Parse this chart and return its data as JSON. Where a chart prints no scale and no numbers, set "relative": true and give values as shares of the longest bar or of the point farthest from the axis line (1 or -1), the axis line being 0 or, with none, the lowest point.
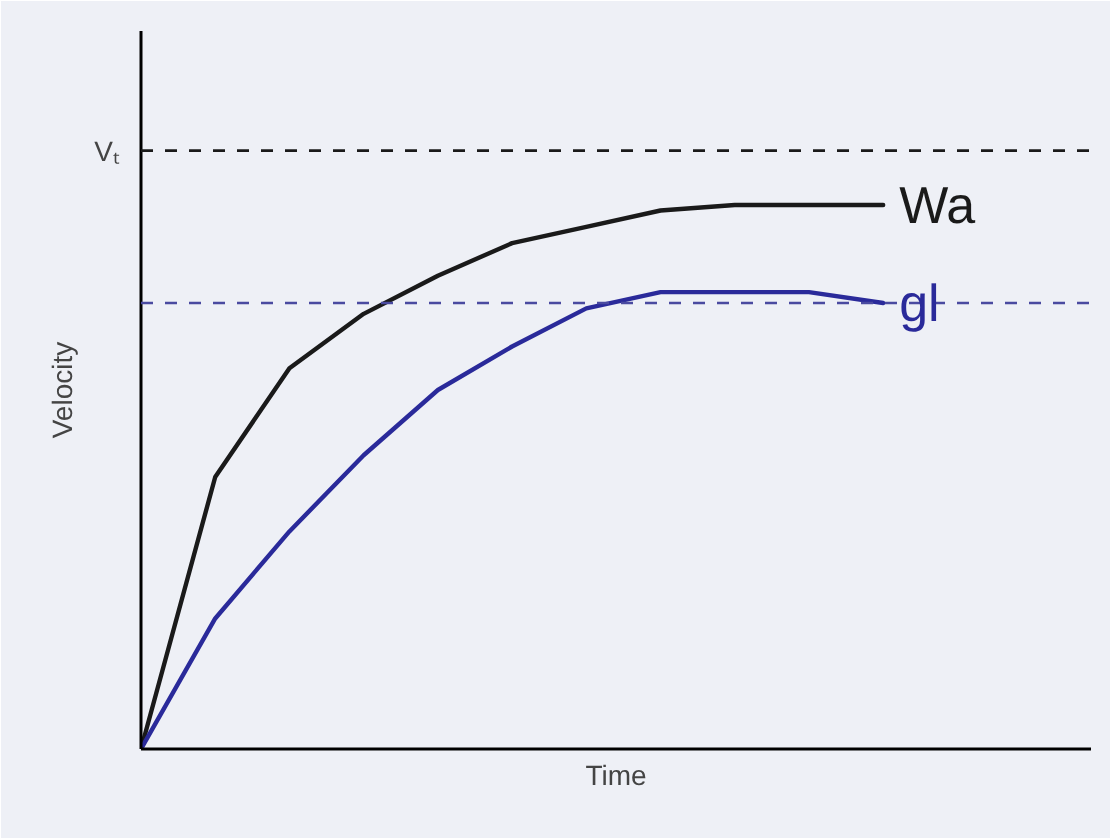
{
  "chart_data": {
    "type": "line",
    "relative": true,
    "xlabel": "Time",
    "ylabel": "Velocity",
    "categories": [
      null,
      null,
      null,
      null,
      null,
      null,
      null,
      null,
      null,
      null,
      null
    ],
    "series": [
      {
        "name": "Wa",
        "color": "#1a1a1a",
        "values": [
          0,
          0.5,
          0.7,
          0.8,
          0.87,
          0.93,
          0.96,
          0.99,
          1.0,
          1.0,
          1.0
        ]
      },
      {
        "name": "gl",
        "color": "#2a2a9a",
        "values": [
          0,
          0.24,
          0.4,
          0.54,
          0.66,
          0.74,
          0.81,
          0.84,
          0.84,
          0.84,
          0.82
        ]
      }
    ],
    "ref_lines": [
      {
        "axis": "y",
        "value": 1.1,
        "label": "Vₜ",
        "color": "#1a1a1a",
        "line_style": "dashed"
      },
      {
        "axis": "y",
        "value": 0.82,
        "label": null,
        "color": "#4a4aa0",
        "line_style": "dashed"
      }
    ],
    "marker": "none",
    "line_style": "solid"
  }
}
